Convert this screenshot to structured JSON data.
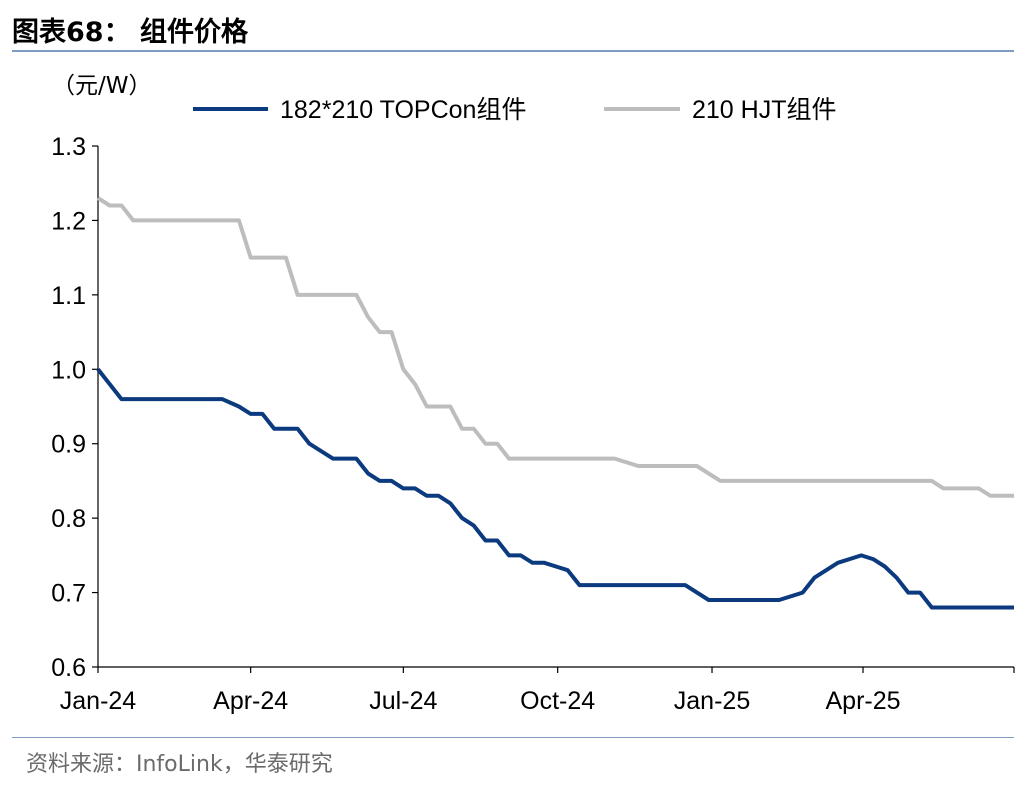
{
  "header": {
    "title": "图表68： 组件价格"
  },
  "footer": {
    "source": "资料来源：InfoLink，华泰研究"
  },
  "colors": {
    "series_topcon": "#0b3a7e",
    "series_hjt": "#bdbdbd",
    "rule": "#7f9cc0",
    "axis": "#000000"
  },
  "chart_data": {
    "type": "line",
    "title": "",
    "ylabel": "（元/W）",
    "xlabel": "",
    "ylim": [
      0.6,
      1.3
    ],
    "yticks": [
      "0.6",
      "0.7",
      "0.8",
      "0.9",
      "1.0",
      "1.1",
      "1.2",
      "1.3"
    ],
    "xrange": [
      "2024-01-01",
      "2025-06-30"
    ],
    "xticks": [
      {
        "label": "Jan-24",
        "date": "2024-01-01"
      },
      {
        "label": "Apr-24",
        "date": "2024-04-01"
      },
      {
        "label": "Jul-24",
        "date": "2024-07-01"
      },
      {
        "label": "Oct-24",
        "date": "2024-10-01"
      },
      {
        "label": "Jan-25",
        "date": "2025-01-01"
      },
      {
        "label": "Apr-25",
        "date": "2025-04-01"
      }
    ],
    "legend_position": "top",
    "grid": false,
    "series": [
      {
        "name": "182*210 TOPCon组件",
        "color": "#0b3a7e",
        "points": [
          [
            "2024-01-01",
            1.0
          ],
          [
            "2024-01-15",
            0.96
          ],
          [
            "2024-03-15",
            0.96
          ],
          [
            "2024-03-25",
            0.95
          ],
          [
            "2024-04-01",
            0.94
          ],
          [
            "2024-04-08",
            0.94
          ],
          [
            "2024-04-15",
            0.92
          ],
          [
            "2024-04-29",
            0.92
          ],
          [
            "2024-05-06",
            0.9
          ],
          [
            "2024-05-20",
            0.88
          ],
          [
            "2024-06-03",
            0.88
          ],
          [
            "2024-06-10",
            0.86
          ],
          [
            "2024-06-17",
            0.85
          ],
          [
            "2024-06-24",
            0.85
          ],
          [
            "2024-07-01",
            0.84
          ],
          [
            "2024-07-08",
            0.84
          ],
          [
            "2024-07-15",
            0.83
          ],
          [
            "2024-07-22",
            0.83
          ],
          [
            "2024-07-29",
            0.82
          ],
          [
            "2024-08-05",
            0.8
          ],
          [
            "2024-08-12",
            0.79
          ],
          [
            "2024-08-19",
            0.77
          ],
          [
            "2024-08-26",
            0.77
          ],
          [
            "2024-09-02",
            0.75
          ],
          [
            "2024-09-09",
            0.75
          ],
          [
            "2024-09-16",
            0.74
          ],
          [
            "2024-09-23",
            0.74
          ],
          [
            "2024-09-30",
            0.735
          ],
          [
            "2024-10-07",
            0.73
          ],
          [
            "2024-10-14",
            0.71
          ],
          [
            "2024-12-16",
            0.71
          ],
          [
            "2024-12-30",
            0.69
          ],
          [
            "2025-02-10",
            0.69
          ],
          [
            "2025-02-24",
            0.7
          ],
          [
            "2025-03-03",
            0.72
          ],
          [
            "2025-03-17",
            0.74
          ],
          [
            "2025-03-31",
            0.75
          ],
          [
            "2025-04-07",
            0.745
          ],
          [
            "2025-04-14",
            0.735
          ],
          [
            "2025-04-21",
            0.72
          ],
          [
            "2025-04-28",
            0.7
          ],
          [
            "2025-05-05",
            0.7
          ],
          [
            "2025-05-12",
            0.68
          ],
          [
            "2025-06-30",
            0.68
          ]
        ]
      },
      {
        "name": "210 HJT组件",
        "color": "#bdbdbd",
        "points": [
          [
            "2024-01-01",
            1.23
          ],
          [
            "2024-01-08",
            1.22
          ],
          [
            "2024-01-15",
            1.22
          ],
          [
            "2024-01-22",
            1.2
          ],
          [
            "2024-03-25",
            1.2
          ],
          [
            "2024-04-01",
            1.15
          ],
          [
            "2024-04-22",
            1.15
          ],
          [
            "2024-04-29",
            1.1
          ],
          [
            "2024-06-03",
            1.1
          ],
          [
            "2024-06-10",
            1.07
          ],
          [
            "2024-06-17",
            1.05
          ],
          [
            "2024-06-24",
            1.05
          ],
          [
            "2024-07-01",
            1.0
          ],
          [
            "2024-07-08",
            0.98
          ],
          [
            "2024-07-15",
            0.95
          ],
          [
            "2024-07-29",
            0.95
          ],
          [
            "2024-08-05",
            0.92
          ],
          [
            "2024-08-12",
            0.92
          ],
          [
            "2024-08-19",
            0.9
          ],
          [
            "2024-08-26",
            0.9
          ],
          [
            "2024-09-02",
            0.88
          ],
          [
            "2024-11-04",
            0.88
          ],
          [
            "2024-11-18",
            0.87
          ],
          [
            "2024-12-23",
            0.87
          ],
          [
            "2025-01-06",
            0.85
          ],
          [
            "2025-05-12",
            0.85
          ],
          [
            "2025-05-19",
            0.84
          ],
          [
            "2025-06-09",
            0.84
          ],
          [
            "2025-06-16",
            0.83
          ],
          [
            "2025-06-30",
            0.83
          ]
        ]
      }
    ]
  }
}
